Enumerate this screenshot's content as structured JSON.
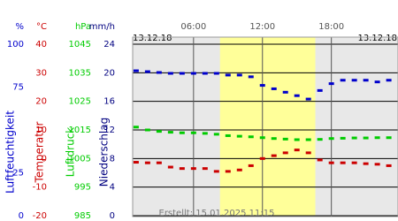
{
  "chart_data": {
    "type": "line",
    "x": [
      1,
      2,
      3,
      4,
      5,
      6,
      7,
      8,
      9,
      10,
      11,
      12,
      13,
      14,
      15,
      16,
      17,
      18,
      19,
      20,
      21,
      22,
      23
    ],
    "xlim": [
      0.7,
      23.8
    ],
    "xticks": [
      {
        "value": 6,
        "label": "06:00"
      },
      {
        "value": 12,
        "label": "12:00"
      },
      {
        "value": 18,
        "label": "18:00"
      }
    ],
    "daylight": [
      8.3,
      16.6
    ],
    "date_left": "13.12.18",
    "date_right": "13.12.18",
    "footer": "Erstellt: 15.01.2025 11:15",
    "series": [
      {
        "name": "Luftfeuchtigkeit",
        "unit": "%",
        "color": "#0000cc",
        "label_x": 27,
        "title_x": 12,
        "ylim": [
          0,
          100
        ],
        "yticks": [
          100,
          75,
          25,
          0
        ],
        "values": [
          84.5,
          84,
          83.5,
          83,
          83,
          83,
          83,
          83,
          82,
          82,
          81,
          76,
          74,
          72,
          70,
          68,
          73,
          77,
          79,
          79,
          79,
          78,
          79
        ]
      },
      {
        "name": "Temperatur",
        "unit": "°C",
        "color": "#cc0000",
        "label_x": 53,
        "title_x": 45,
        "ylim": [
          -20,
          40
        ],
        "yticks": [
          40,
          30,
          20,
          10,
          0,
          -10,
          -20
        ],
        "values": [
          -1.3,
          -1.5,
          -1.5,
          -3,
          -3.5,
          -3.5,
          -3.5,
          -4.5,
          -4.5,
          -4,
          -2.5,
          0,
          1,
          2,
          3,
          2,
          -0.5,
          -1.5,
          -1.5,
          -1.5,
          -1.8,
          -2,
          -2.5
        ]
      },
      {
        "name": "Luftdruck",
        "unit": "hPa",
        "color": "#00cc00",
        "label_x": 103,
        "title_x": 80,
        "ylim": [
          985,
          1045
        ],
        "yticks": [
          1045,
          1035,
          1025,
          1015,
          1005,
          995,
          985
        ],
        "values": [
          1016,
          1015,
          1014.5,
          1014.2,
          1014,
          1014,
          1013.8,
          1013.5,
          1013,
          1012.8,
          1012.6,
          1012.3,
          1012,
          1011.8,
          1011.6,
          1011.6,
          1011.7,
          1012,
          1012.1,
          1012.2,
          1012.2,
          1012.3,
          1012.3
        ]
      }
    ],
    "precip_axis": {
      "name": "Niederschlag",
      "unit": "mm/h",
      "color": "#000080",
      "label_x": 130,
      "title_x": 118,
      "ylim": [
        0,
        24
      ],
      "yticks": [
        24,
        20,
        16,
        12,
        8,
        4,
        0
      ]
    }
  }
}
